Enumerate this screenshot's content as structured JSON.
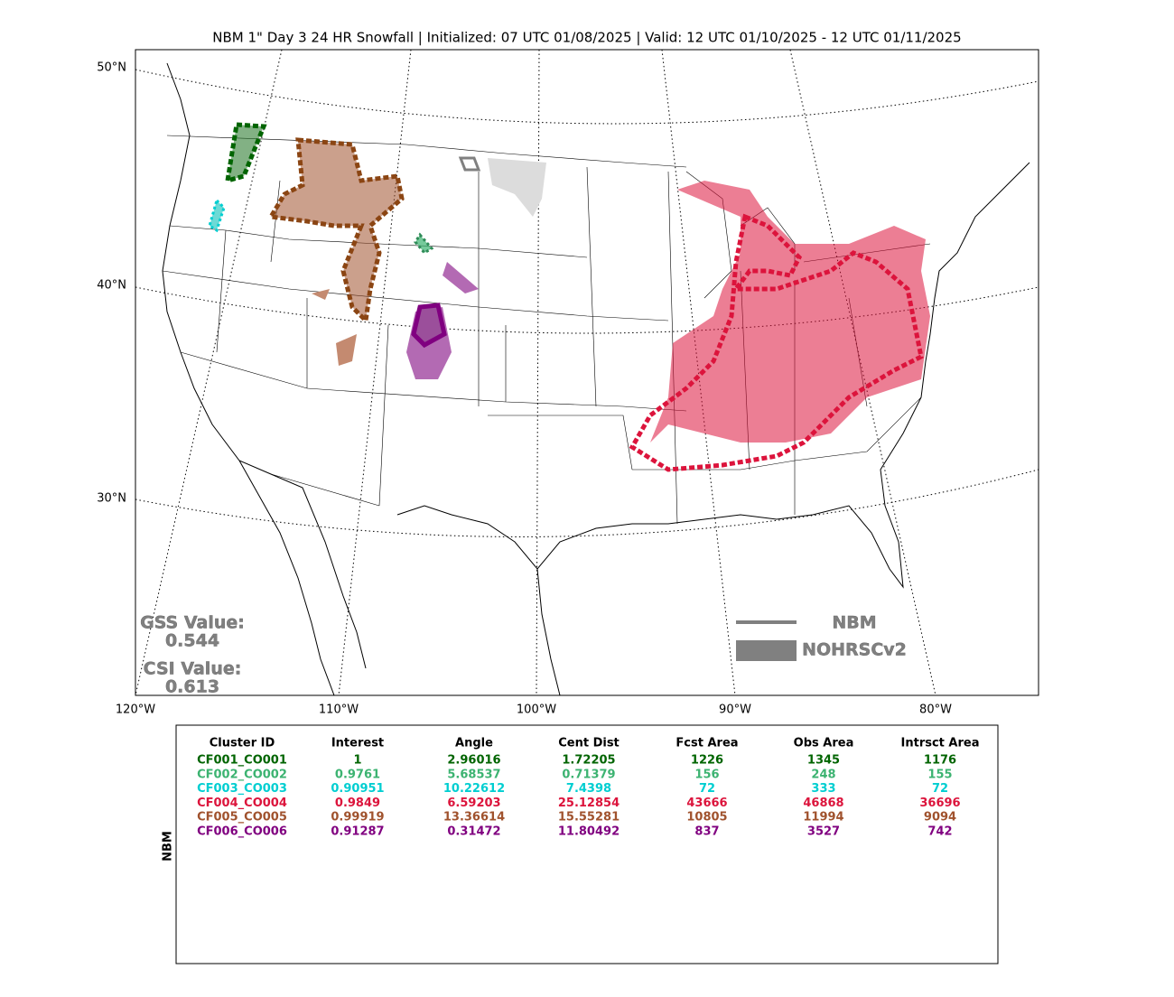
{
  "title": "NBM 1\" Day 3 24 HR Snowfall | Initialized: 07 UTC 01/08/2025 | Valid: 12 UTC 01/10/2025 - 12 UTC 01/11/2025",
  "map": {
    "lat_labels": [
      "50°N",
      "40°N",
      "30°N"
    ],
    "lon_labels": [
      "120°W",
      "110°W",
      "100°W",
      "90°W",
      "80°W"
    ]
  },
  "scores": {
    "gss_label": "GSS Value:",
    "gss_value": 0.544,
    "csi_label": "CSI Value:",
    "csi_value": 0.613
  },
  "legend": {
    "line_label": "NBM",
    "fill_label": "NOHRSCv2"
  },
  "table": {
    "side_label": "NBM",
    "header": [
      "Cluster ID",
      "Interest",
      "Angle",
      "Cent Dist",
      "Fcst Area",
      "Obs Area",
      "Intrsct Area"
    ],
    "rows": [
      {
        "color": "#006400",
        "cells": [
          "CF001_CO001",
          1,
          2.96016,
          1.72205,
          1226,
          1345,
          1176
        ]
      },
      {
        "color": "#3cb371",
        "cells": [
          "CF002_CO002",
          0.9761,
          5.68537,
          0.71379,
          156,
          248,
          155
        ]
      },
      {
        "color": "#00ced1",
        "cells": [
          "CF003_CO003",
          0.90951,
          10.22612,
          7.4398,
          72,
          333,
          72
        ]
      },
      {
        "color": "#dc143c",
        "cells": [
          "CF004_CO004",
          0.9849,
          6.59203,
          25.12854,
          43666,
          46868,
          36696
        ]
      },
      {
        "color": "#a0522d",
        "cells": [
          "CF005_CO005",
          0.99919,
          13.36614,
          15.55281,
          10805,
          11994,
          9094
        ]
      },
      {
        "color": "#800080",
        "cells": [
          "CF006_CO006",
          0.91287,
          0.31472,
          11.80492,
          837,
          3527,
          742
        ]
      }
    ]
  }
}
